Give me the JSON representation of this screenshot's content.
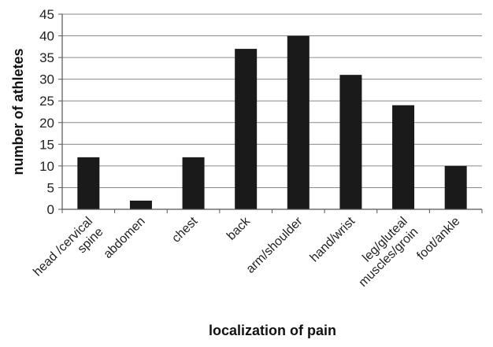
{
  "chart_data": {
    "type": "bar",
    "categories": [
      [
        "head /cervical",
        "spine"
      ],
      [
        "abdomen"
      ],
      [
        "chest"
      ],
      [
        "back"
      ],
      [
        "arm/shoulder"
      ],
      [
        "hand/wrist"
      ],
      [
        "leg/gluteal",
        "muscles/groin"
      ],
      [
        "foot/ankle"
      ]
    ],
    "values": [
      12,
      2,
      12,
      37,
      40,
      31,
      24,
      10
    ],
    "xlabel": "localization of pain",
    "ylabel": "number of athletes",
    "ylim": [
      0,
      45
    ],
    "yticks": [
      0,
      5,
      10,
      15,
      20,
      25,
      30,
      35,
      40,
      45
    ],
    "grid": true,
    "bar_color": "#1a1a1a",
    "grid_color": "#8a8a8a"
  }
}
